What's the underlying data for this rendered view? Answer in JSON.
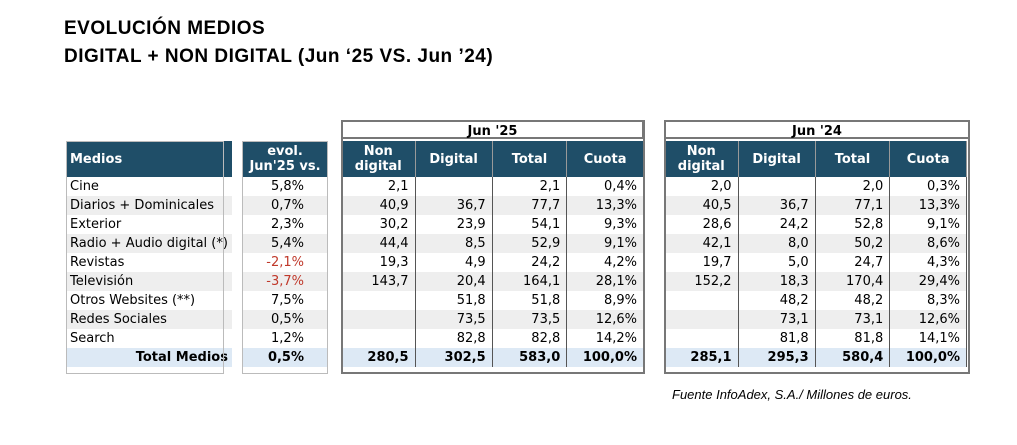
{
  "title": {
    "line1": "EVOLUCIÓN  MEDIOS",
    "line2": "DIGITAL + NON DIGITAL (Jun ‘25 VS. Jun ’24)"
  },
  "groups": {
    "jun25": "Jun '25",
    "jun24": "Jun '24"
  },
  "headers": {
    "medios": "Medios",
    "evol_line1": "evol.",
    "evol_line2": "Jun'25 vs.",
    "non_line1": "Non",
    "non_line2": "digital",
    "digital": "Digital",
    "total": "Total",
    "cuota": "Cuota"
  },
  "rows": [
    {
      "medio": "Cine",
      "evol": "5,8%",
      "neg": false,
      "j25": {
        "non": "2,1",
        "dig": "",
        "tot": "2,1",
        "cuota": "0,4%"
      },
      "j24": {
        "non": "2,0",
        "dig": "",
        "tot": "2,0",
        "cuota": "0,3%"
      }
    },
    {
      "medio": "Diarios + Dominicales",
      "evol": "0,7%",
      "neg": false,
      "j25": {
        "non": "40,9",
        "dig": "36,7",
        "tot": "77,7",
        "cuota": "13,3%"
      },
      "j24": {
        "non": "40,5",
        "dig": "36,7",
        "tot": "77,1",
        "cuota": "13,3%"
      }
    },
    {
      "medio": "Exterior",
      "evol": "2,3%",
      "neg": false,
      "j25": {
        "non": "30,2",
        "dig": "23,9",
        "tot": "54,1",
        "cuota": "9,3%"
      },
      "j24": {
        "non": "28,6",
        "dig": "24,2",
        "tot": "52,8",
        "cuota": "9,1%"
      }
    },
    {
      "medio": "Radio + Audio digital (*)",
      "evol": "5,4%",
      "neg": false,
      "j25": {
        "non": "44,4",
        "dig": "8,5",
        "tot": "52,9",
        "cuota": "9,1%"
      },
      "j24": {
        "non": "42,1",
        "dig": "8,0",
        "tot": "50,2",
        "cuota": "8,6%"
      }
    },
    {
      "medio": "Revistas",
      "evol": "-2,1%",
      "neg": true,
      "j25": {
        "non": "19,3",
        "dig": "4,9",
        "tot": "24,2",
        "cuota": "4,2%"
      },
      "j24": {
        "non": "19,7",
        "dig": "5,0",
        "tot": "24,7",
        "cuota": "4,3%"
      }
    },
    {
      "medio": "Televisión",
      "evol": "-3,7%",
      "neg": true,
      "j25": {
        "non": "143,7",
        "dig": "20,4",
        "tot": "164,1",
        "cuota": "28,1%"
      },
      "j24": {
        "non": "152,2",
        "dig": "18,3",
        "tot": "170,4",
        "cuota": "29,4%"
      }
    },
    {
      "medio": "Otros Websites (**)",
      "evol": "7,5%",
      "neg": false,
      "j25": {
        "non": "",
        "dig": "51,8",
        "tot": "51,8",
        "cuota": "8,9%"
      },
      "j24": {
        "non": "",
        "dig": "48,2",
        "tot": "48,2",
        "cuota": "8,3%"
      }
    },
    {
      "medio": "Redes Sociales",
      "evol": "0,5%",
      "neg": false,
      "j25": {
        "non": "",
        "dig": "73,5",
        "tot": "73,5",
        "cuota": "12,6%"
      },
      "j24": {
        "non": "",
        "dig": "73,1",
        "tot": "73,1",
        "cuota": "12,6%"
      }
    },
    {
      "medio": "Search",
      "evol": "1,2%",
      "neg": false,
      "j25": {
        "non": "",
        "dig": "82,8",
        "tot": "82,8",
        "cuota": "14,2%"
      },
      "j24": {
        "non": "",
        "dig": "81,8",
        "tot": "81,8",
        "cuota": "14,1%"
      }
    }
  ],
  "total": {
    "medio": "Total Medios",
    "evol": "0,5%",
    "j25": {
      "non": "280,5",
      "dig": "302,5",
      "tot": "583,0",
      "cuota": "100,0%"
    },
    "j24": {
      "non": "285,1",
      "dig": "295,3",
      "tot": "580,4",
      "cuota": "100,0%"
    }
  },
  "source": "Fuente InfoAdex, S.A./ Millones de euros.",
  "colors": {
    "header_bg": "#1f4e68",
    "negative": "#c0392b",
    "total_bg": "#dde9f5",
    "stripe": "#eeeeee"
  }
}
